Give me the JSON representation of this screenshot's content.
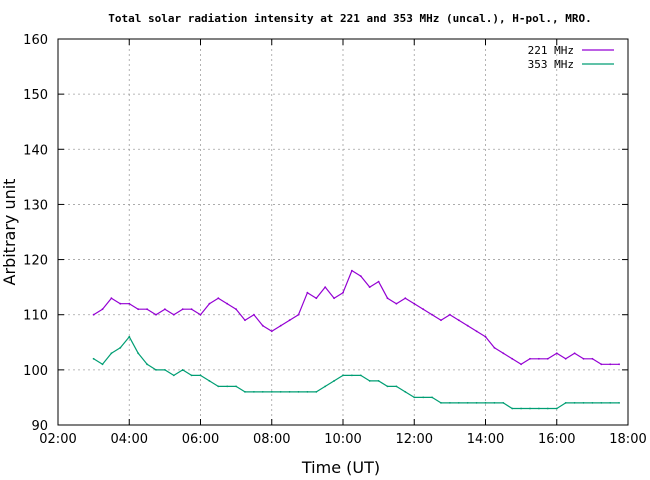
{
  "chart_data": {
    "type": "line",
    "title": "Total solar radiation intensity at 221 and 353 MHz (uncal.), H-pol., MRO.",
    "xlabel": "Time (UT)",
    "ylabel": "Arbitrary unit",
    "xlim": [
      2,
      18
    ],
    "ylim": [
      90,
      160
    ],
    "x_ticks": [
      "02:00",
      "04:00",
      "06:00",
      "08:00",
      "10:00",
      "12:00",
      "14:00",
      "16:00",
      "18:00"
    ],
    "y_ticks": [
      "90",
      "100",
      "110",
      "120",
      "130",
      "140",
      "150",
      "160"
    ],
    "grid": true,
    "legend_position": "top-right",
    "colors": {
      "221 MHz": "#9400d3",
      "353 MHz": "#009e73"
    },
    "series": [
      {
        "name": "221 MHz",
        "x": [
          3.0,
          3.25,
          3.5,
          3.75,
          4.0,
          4.25,
          4.5,
          4.75,
          5.0,
          5.25,
          5.5,
          5.75,
          6.0,
          6.25,
          6.5,
          6.75,
          7.0,
          7.25,
          7.5,
          7.75,
          8.0,
          8.25,
          8.5,
          8.75,
          9.0,
          9.25,
          9.5,
          9.75,
          10.0,
          10.25,
          10.5,
          10.75,
          11.0,
          11.25,
          11.5,
          11.75,
          12.0,
          12.25,
          12.5,
          12.75,
          13.0,
          13.25,
          13.5,
          13.75,
          14.0,
          14.25,
          14.5,
          14.75,
          15.0,
          15.25,
          15.5,
          15.75,
          16.0,
          16.25,
          16.5,
          16.75,
          17.0,
          17.25,
          17.5,
          17.75
        ],
        "values": [
          110,
          111,
          113,
          112,
          112,
          111,
          111,
          110,
          111,
          110,
          111,
          111,
          110,
          112,
          113,
          112,
          111,
          109,
          110,
          108,
          107,
          108,
          109,
          110,
          114,
          113,
          115,
          113,
          114,
          118,
          117,
          115,
          116,
          113,
          112,
          113,
          112,
          111,
          110,
          109,
          110,
          109,
          108,
          107,
          106,
          104,
          103,
          102,
          101,
          102,
          102,
          102,
          103,
          102,
          103,
          102,
          102,
          101,
          101,
          101
        ]
      },
      {
        "name": "353 MHz",
        "x": [
          3.0,
          3.25,
          3.5,
          3.75,
          4.0,
          4.25,
          4.5,
          4.75,
          5.0,
          5.25,
          5.5,
          5.75,
          6.0,
          6.25,
          6.5,
          6.75,
          7.0,
          7.25,
          7.5,
          7.75,
          8.0,
          8.25,
          8.5,
          8.75,
          9.0,
          9.25,
          9.5,
          9.75,
          10.0,
          10.25,
          10.5,
          10.75,
          11.0,
          11.25,
          11.5,
          11.75,
          12.0,
          12.25,
          12.5,
          12.75,
          13.0,
          13.25,
          13.5,
          13.75,
          14.0,
          14.25,
          14.5,
          14.75,
          15.0,
          15.25,
          15.5,
          15.75,
          16.0,
          16.25,
          16.5,
          16.75,
          17.0,
          17.25,
          17.5,
          17.75
        ],
        "values": [
          102,
          101,
          103,
          104,
          106,
          103,
          101,
          100,
          100,
          99,
          100,
          99,
          99,
          98,
          97,
          97,
          97,
          96,
          96,
          96,
          96,
          96,
          96,
          96,
          96,
          96,
          97,
          98,
          99,
          99,
          99,
          98,
          98,
          97,
          97,
          96,
          95,
          95,
          95,
          94,
          94,
          94,
          94,
          94,
          94,
          94,
          94,
          93,
          93,
          93,
          93,
          93,
          93,
          94,
          94,
          94,
          94,
          94,
          94,
          94
        ]
      }
    ]
  }
}
